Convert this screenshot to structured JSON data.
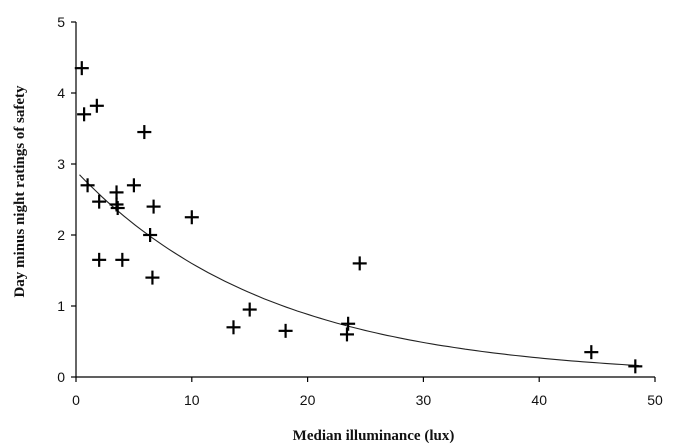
{
  "chart_data": {
    "type": "scatter",
    "title": "",
    "xlabel": "Median illuminance  (lux)",
    "ylabel": "Day minus night ratings of safety",
    "xlim": [
      0,
      50
    ],
    "ylim": [
      0,
      5
    ],
    "xticks": [
      0,
      10,
      20,
      30,
      40,
      50
    ],
    "yticks": [
      0,
      1,
      2,
      3,
      4,
      5
    ],
    "grid": false,
    "legend": "none",
    "marker": "plus",
    "series": [
      {
        "points": [
          {
            "x": 0.5,
            "y": 4.35
          },
          {
            "x": 0.7,
            "y": 3.7
          },
          {
            "x": 1.8,
            "y": 3.82
          },
          {
            "x": 1.0,
            "y": 2.7
          },
          {
            "x": 2.0,
            "y": 2.47
          },
          {
            "x": 2.0,
            "y": 1.65
          },
          {
            "x": 3.5,
            "y": 2.6
          },
          {
            "x": 3.5,
            "y": 2.43
          },
          {
            "x": 3.6,
            "y": 2.38
          },
          {
            "x": 4.0,
            "y": 1.65
          },
          {
            "x": 5.0,
            "y": 2.7
          },
          {
            "x": 5.9,
            "y": 3.45
          },
          {
            "x": 6.4,
            "y": 2.0
          },
          {
            "x": 6.7,
            "y": 2.4
          },
          {
            "x": 6.6,
            "y": 1.4
          },
          {
            "x": 10.0,
            "y": 2.25
          },
          {
            "x": 13.6,
            "y": 0.7
          },
          {
            "x": 15.0,
            "y": 0.95
          },
          {
            "x": 18.1,
            "y": 0.65
          },
          {
            "x": 23.4,
            "y": 0.6
          },
          {
            "x": 23.5,
            "y": 0.75
          },
          {
            "x": 24.5,
            "y": 1.6
          },
          {
            "x": 44.5,
            "y": 0.35
          },
          {
            "x": 48.3,
            "y": 0.15
          }
        ]
      }
    ],
    "trend_line": {
      "type": "exponential",
      "a": 2.9,
      "b": 0.0595
    }
  }
}
